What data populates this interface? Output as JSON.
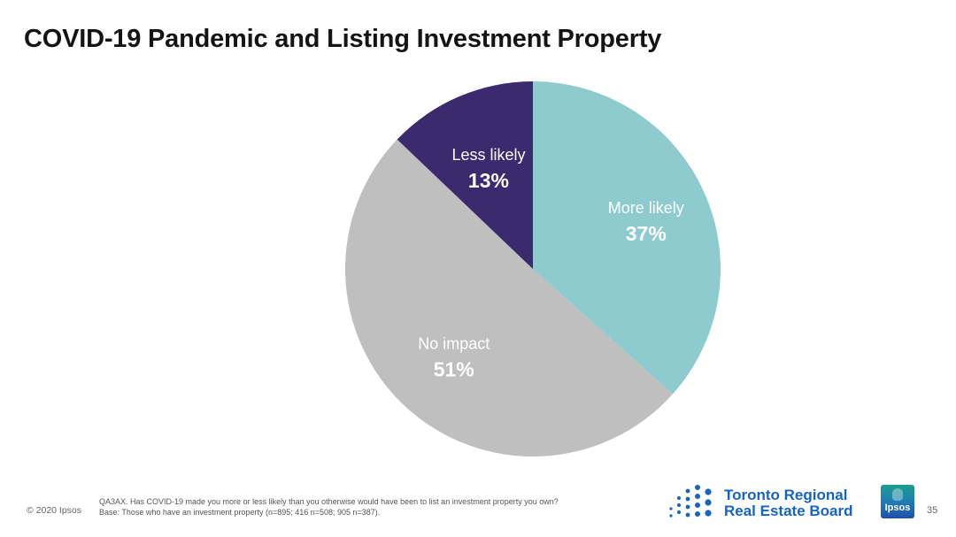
{
  "title": "COVID-19 Pandemic and Listing Investment Property",
  "chart_data": {
    "type": "pie",
    "slices": [
      {
        "label": "More likely",
        "value": 37,
        "display": "37%",
        "color": "#8ecbcf"
      },
      {
        "label": "No impact",
        "value": 51,
        "display": "51%",
        "color": "#bfbfbf"
      },
      {
        "label": "Less likely",
        "value": 13,
        "display": "13%",
        "color": "#3b2a6e"
      }
    ],
    "start_angle_deg": 0,
    "direction": "clockwise"
  },
  "footer": {
    "copyright": "© 2020 Ipsos",
    "question": "QA3AX. Has COVID-19 made you more or less likely than you otherwise would have been to list an investment property you own?",
    "base": "Base: Those who have an investment property (n=895; 416 n=508; 905 n=387).",
    "page_number": "35"
  },
  "logos": {
    "trreb_line1": "Toronto Regional",
    "trreb_line2": "Real Estate Board",
    "trreb_color": "#1565c0",
    "ipsos": "Ipsos"
  }
}
